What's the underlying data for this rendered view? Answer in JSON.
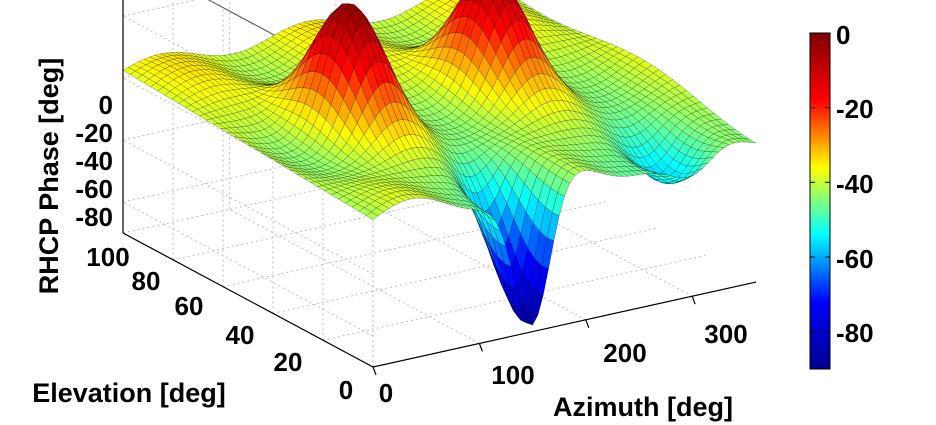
{
  "chart_data": {
    "type": "surface3d",
    "title": "",
    "xlabel": "Azimuth [deg]",
    "ylabel": "Elevation [deg]",
    "zlabel": "RHCP Phase [deg]",
    "x_ticks": [
      "0",
      "100",
      "200",
      "300"
    ],
    "y_ticks": [
      "0",
      "20",
      "40",
      "60",
      "80",
      "100"
    ],
    "z_ticks": [
      "0",
      "-20",
      "-40",
      "-60",
      "-80"
    ],
    "xlim": [
      0,
      360
    ],
    "ylim": [
      0,
      100
    ],
    "zlim": [
      -90,
      0
    ],
    "grid": true,
    "colormap": "jet",
    "colorbar": {
      "location": "right",
      "range": [
        -90,
        0
      ],
      "ticks": [
        "0",
        "-20",
        "-40",
        "-60",
        "-80"
      ]
    },
    "surface_features": [
      {
        "azimuth": 150,
        "elevation": 2,
        "phase": -88,
        "kind": "minimum"
      },
      {
        "azimuth": 95,
        "elevation": 50,
        "phase": -5,
        "kind": "ridge"
      },
      {
        "azimuth": 240,
        "elevation": 55,
        "phase": -8,
        "kind": "ridge"
      },
      {
        "azimuth": 300,
        "elevation": 10,
        "phase": -58,
        "kind": "dip"
      },
      {
        "azimuth": 0,
        "elevation": 80,
        "phase": -40,
        "kind": "plateau"
      }
    ]
  },
  "colors": {
    "colormap_stops": [
      "#00008f",
      "#0000ff",
      "#00ffff",
      "#ffff00",
      "#ff0000",
      "#800000"
    ],
    "grid": "#bdbdbd",
    "mesh": "#000000"
  }
}
